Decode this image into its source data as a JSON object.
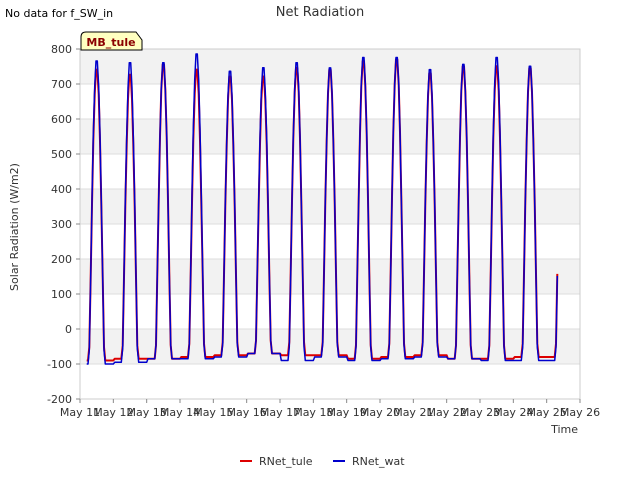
{
  "no_data_note": "No data for f_SW_in",
  "site_badge": "MB_tule",
  "chart_data": {
    "type": "line",
    "title": "Net Radiation",
    "xlabel": "Time",
    "ylabel": "Solar Radiation (W/m2)",
    "xlim": [
      11,
      26
    ],
    "ylim": [
      -200,
      800
    ],
    "x_ticks": [
      {
        "v": 11,
        "label": "May 11"
      },
      {
        "v": 12,
        "label": "May 12"
      },
      {
        "v": 13,
        "label": "May 13"
      },
      {
        "v": 14,
        "label": "May 14"
      },
      {
        "v": 15,
        "label": "May 15"
      },
      {
        "v": 16,
        "label": "May 16"
      },
      {
        "v": 17,
        "label": "May 17"
      },
      {
        "v": 18,
        "label": "May 18"
      },
      {
        "v": 19,
        "label": "May 19"
      },
      {
        "v": 20,
        "label": "May 20"
      },
      {
        "v": 21,
        "label": "May 21"
      },
      {
        "v": 22,
        "label": "May 22"
      },
      {
        "v": 23,
        "label": "May 23"
      },
      {
        "v": 24,
        "label": "May 24"
      },
      {
        "v": 25,
        "label": "May 25"
      },
      {
        "v": 26,
        "label": "May 26"
      }
    ],
    "y_ticks": [
      -200,
      -100,
      0,
      100,
      200,
      300,
      400,
      500,
      600,
      700,
      800
    ],
    "grid": true,
    "legend_position": "bottom-center",
    "series": [
      {
        "name": "RNet_tule",
        "color": "#dd0000",
        "daily_peaks": [
          750,
          735,
          765,
          750,
          730,
          730,
          755,
          750,
          775,
          780,
          740,
          760,
          760,
          755
        ],
        "night_values": [
          -90,
          -85,
          -85,
          -80,
          -75,
          -70,
          -75,
          -75,
          -85,
          -80,
          -75,
          -85,
          -85,
          -80
        ]
      },
      {
        "name": "RNet_wat",
        "color": "#0000cc",
        "daily_peaks": [
          775,
          770,
          770,
          795,
          745,
          755,
          770,
          755,
          785,
          785,
          750,
          765,
          785,
          760
        ],
        "night_values": [
          -100,
          -95,
          -85,
          -85,
          -80,
          -70,
          -90,
          -80,
          -90,
          -85,
          -80,
          -85,
          -90,
          -90
        ]
      }
    ]
  }
}
